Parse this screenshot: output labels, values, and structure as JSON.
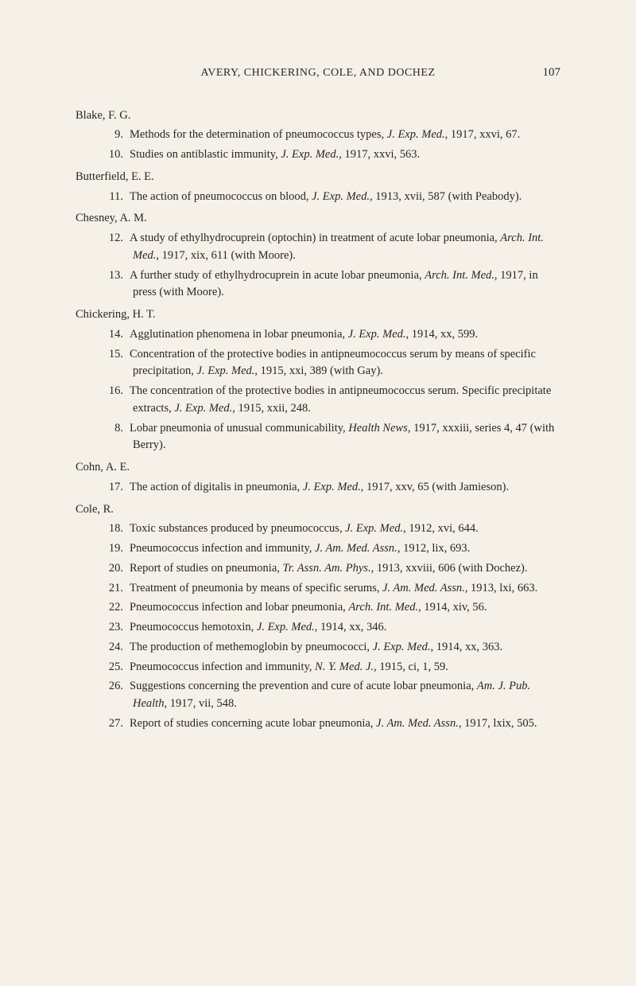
{
  "header": {
    "title": "AVERY, CHICKERING, COLE, AND DOCHEZ",
    "page_number": "107"
  },
  "authors": [
    {
      "name": "Blake, F. G.",
      "entries": [
        {
          "num": "9.",
          "text": "Methods for the determination of pneumococcus types, <em>J. Exp. Med.</em>, 1917, xxvi, 67."
        },
        {
          "num": "10.",
          "text": "Studies on antiblastic immunity, <em>J. Exp. Med.</em>, 1917, xxvi, 563."
        }
      ]
    },
    {
      "name": "Butterfield, E. E.",
      "entries": [
        {
          "num": "11.",
          "text": "The action of pneumococcus on blood, <em>J. Exp. Med.</em>, 1913, xvii, 587 (with Peabody)."
        }
      ]
    },
    {
      "name": "Chesney, A. M.",
      "entries": [
        {
          "num": "12.",
          "text": "A study of ethylhydrocuprein (optochin) in treatment of acute lobar pneumonia, <em>Arch. Int. Med.</em>, 1917, xix, 611 (with Moore)."
        },
        {
          "num": "13.",
          "text": "A further study of ethylhydrocuprein in acute lobar pneumonia, <em>Arch. Int. Med.</em>, 1917, in press (with Moore)."
        }
      ]
    },
    {
      "name": "Chickering, H. T.",
      "entries": [
        {
          "num": "14.",
          "text": "Agglutination phenomena in lobar pneumonia, <em>J. Exp. Med.</em>, 1914, xx, 599."
        },
        {
          "num": "15.",
          "text": "Concentration of the protective bodies in antipneumococcus serum by means of specific precipitation, <em>J. Exp. Med.</em>, 1915, xxi, 389 (with Gay)."
        },
        {
          "num": "16.",
          "text": "The concentration of the protective bodies in antipneumococcus serum. Specific precipitate extracts, <em>J. Exp. Med.</em>, 1915, xxii, 248."
        },
        {
          "num": "8.",
          "text": "Lobar pneumonia of unusual communicability, <em>Health News</em>, 1917, xxxiii, series 4, 47 (with Berry)."
        }
      ]
    },
    {
      "name": "Cohn, A. E.",
      "entries": [
        {
          "num": "17.",
          "text": "The action of digitalis in pneumonia, <em>J. Exp. Med.</em>, 1917, xxv, 65 (with Jamieson)."
        }
      ]
    },
    {
      "name": "Cole, R.",
      "entries": [
        {
          "num": "18.",
          "text": "Toxic substances produced by pneumococcus, <em>J. Exp. Med.</em>, 1912, xvi, 644."
        },
        {
          "num": "19.",
          "text": "Pneumococcus infection and immunity, <em>J. Am. Med. Assn.</em>, 1912, lix, 693."
        },
        {
          "num": "20.",
          "text": "Report of studies on pneumonia, <em>Tr. Assn. Am. Phys.</em>, 1913, xxviii, 606 (with Dochez)."
        },
        {
          "num": "21.",
          "text": "Treatment of pneumonia by means of specific serums, <em>J. Am. Med. Assn.</em>, 1913, lxi, 663."
        },
        {
          "num": "22.",
          "text": "Pneumococcus infection and lobar pneumonia, <em>Arch. Int. Med.</em>, 1914, xiv, 56."
        },
        {
          "num": "23.",
          "text": "Pneumococcus hemotoxin, <em>J. Exp. Med.</em>, 1914, xx, 346."
        },
        {
          "num": "24.",
          "text": "The production of methemoglobin by pneumococci, <em>J. Exp. Med.</em>, 1914, xx, 363."
        },
        {
          "num": "25.",
          "text": "Pneumococcus infection and immunity, <em>N. Y. Med. J.</em>, 1915, ci, 1, 59."
        },
        {
          "num": "26.",
          "text": "Suggestions concerning the prevention and cure of acute lobar pneumonia, <em>Am. J. Pub. Health</em>, 1917, vii, 548."
        },
        {
          "num": "27.",
          "text": "Report of studies concerning acute lobar pneumonia, <em>J. Am. Med. Assn.</em>, 1917, lxix, 505."
        }
      ]
    }
  ]
}
